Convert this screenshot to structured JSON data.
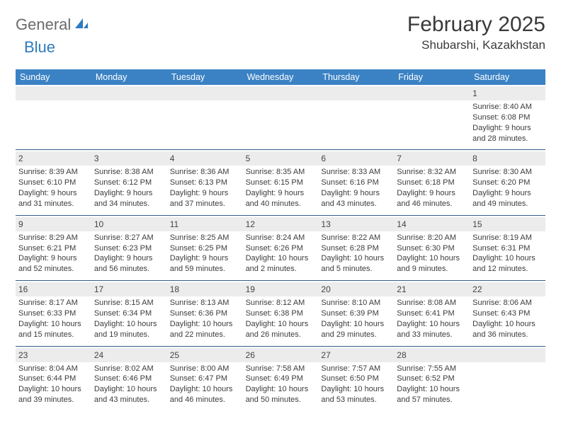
{
  "brand": {
    "part1": "General",
    "part2": "Blue"
  },
  "title": "February 2025",
  "location": "Shubarshi, Kazakhstan",
  "colors": {
    "header_bg": "#3b82c4",
    "header_text": "#ffffff",
    "divider": "#2f5f8a",
    "daynum_bg": "#ececec",
    "body_text": "#3c3c3c",
    "logo_gray": "#6a6a6a",
    "logo_blue": "#2f7bbf"
  },
  "dayNames": [
    "Sunday",
    "Monday",
    "Tuesday",
    "Wednesday",
    "Thursday",
    "Friday",
    "Saturday"
  ],
  "weeks": [
    [
      null,
      null,
      null,
      null,
      null,
      null,
      {
        "n": "1",
        "sr": "Sunrise: 8:40 AM",
        "ss": "Sunset: 6:08 PM",
        "d1": "Daylight: 9 hours",
        "d2": "and 28 minutes."
      }
    ],
    [
      {
        "n": "2",
        "sr": "Sunrise: 8:39 AM",
        "ss": "Sunset: 6:10 PM",
        "d1": "Daylight: 9 hours",
        "d2": "and 31 minutes."
      },
      {
        "n": "3",
        "sr": "Sunrise: 8:38 AM",
        "ss": "Sunset: 6:12 PM",
        "d1": "Daylight: 9 hours",
        "d2": "and 34 minutes."
      },
      {
        "n": "4",
        "sr": "Sunrise: 8:36 AM",
        "ss": "Sunset: 6:13 PM",
        "d1": "Daylight: 9 hours",
        "d2": "and 37 minutes."
      },
      {
        "n": "5",
        "sr": "Sunrise: 8:35 AM",
        "ss": "Sunset: 6:15 PM",
        "d1": "Daylight: 9 hours",
        "d2": "and 40 minutes."
      },
      {
        "n": "6",
        "sr": "Sunrise: 8:33 AM",
        "ss": "Sunset: 6:16 PM",
        "d1": "Daylight: 9 hours",
        "d2": "and 43 minutes."
      },
      {
        "n": "7",
        "sr": "Sunrise: 8:32 AM",
        "ss": "Sunset: 6:18 PM",
        "d1": "Daylight: 9 hours",
        "d2": "and 46 minutes."
      },
      {
        "n": "8",
        "sr": "Sunrise: 8:30 AM",
        "ss": "Sunset: 6:20 PM",
        "d1": "Daylight: 9 hours",
        "d2": "and 49 minutes."
      }
    ],
    [
      {
        "n": "9",
        "sr": "Sunrise: 8:29 AM",
        "ss": "Sunset: 6:21 PM",
        "d1": "Daylight: 9 hours",
        "d2": "and 52 minutes."
      },
      {
        "n": "10",
        "sr": "Sunrise: 8:27 AM",
        "ss": "Sunset: 6:23 PM",
        "d1": "Daylight: 9 hours",
        "d2": "and 56 minutes."
      },
      {
        "n": "11",
        "sr": "Sunrise: 8:25 AM",
        "ss": "Sunset: 6:25 PM",
        "d1": "Daylight: 9 hours",
        "d2": "and 59 minutes."
      },
      {
        "n": "12",
        "sr": "Sunrise: 8:24 AM",
        "ss": "Sunset: 6:26 PM",
        "d1": "Daylight: 10 hours",
        "d2": "and 2 minutes."
      },
      {
        "n": "13",
        "sr": "Sunrise: 8:22 AM",
        "ss": "Sunset: 6:28 PM",
        "d1": "Daylight: 10 hours",
        "d2": "and 5 minutes."
      },
      {
        "n": "14",
        "sr": "Sunrise: 8:20 AM",
        "ss": "Sunset: 6:30 PM",
        "d1": "Daylight: 10 hours",
        "d2": "and 9 minutes."
      },
      {
        "n": "15",
        "sr": "Sunrise: 8:19 AM",
        "ss": "Sunset: 6:31 PM",
        "d1": "Daylight: 10 hours",
        "d2": "and 12 minutes."
      }
    ],
    [
      {
        "n": "16",
        "sr": "Sunrise: 8:17 AM",
        "ss": "Sunset: 6:33 PM",
        "d1": "Daylight: 10 hours",
        "d2": "and 15 minutes."
      },
      {
        "n": "17",
        "sr": "Sunrise: 8:15 AM",
        "ss": "Sunset: 6:34 PM",
        "d1": "Daylight: 10 hours",
        "d2": "and 19 minutes."
      },
      {
        "n": "18",
        "sr": "Sunrise: 8:13 AM",
        "ss": "Sunset: 6:36 PM",
        "d1": "Daylight: 10 hours",
        "d2": "and 22 minutes."
      },
      {
        "n": "19",
        "sr": "Sunrise: 8:12 AM",
        "ss": "Sunset: 6:38 PM",
        "d1": "Daylight: 10 hours",
        "d2": "and 26 minutes."
      },
      {
        "n": "20",
        "sr": "Sunrise: 8:10 AM",
        "ss": "Sunset: 6:39 PM",
        "d1": "Daylight: 10 hours",
        "d2": "and 29 minutes."
      },
      {
        "n": "21",
        "sr": "Sunrise: 8:08 AM",
        "ss": "Sunset: 6:41 PM",
        "d1": "Daylight: 10 hours",
        "d2": "and 33 minutes."
      },
      {
        "n": "22",
        "sr": "Sunrise: 8:06 AM",
        "ss": "Sunset: 6:43 PM",
        "d1": "Daylight: 10 hours",
        "d2": "and 36 minutes."
      }
    ],
    [
      {
        "n": "23",
        "sr": "Sunrise: 8:04 AM",
        "ss": "Sunset: 6:44 PM",
        "d1": "Daylight: 10 hours",
        "d2": "and 39 minutes."
      },
      {
        "n": "24",
        "sr": "Sunrise: 8:02 AM",
        "ss": "Sunset: 6:46 PM",
        "d1": "Daylight: 10 hours",
        "d2": "and 43 minutes."
      },
      {
        "n": "25",
        "sr": "Sunrise: 8:00 AM",
        "ss": "Sunset: 6:47 PM",
        "d1": "Daylight: 10 hours",
        "d2": "and 46 minutes."
      },
      {
        "n": "26",
        "sr": "Sunrise: 7:58 AM",
        "ss": "Sunset: 6:49 PM",
        "d1": "Daylight: 10 hours",
        "d2": "and 50 minutes."
      },
      {
        "n": "27",
        "sr": "Sunrise: 7:57 AM",
        "ss": "Sunset: 6:50 PM",
        "d1": "Daylight: 10 hours",
        "d2": "and 53 minutes."
      },
      {
        "n": "28",
        "sr": "Sunrise: 7:55 AM",
        "ss": "Sunset: 6:52 PM",
        "d1": "Daylight: 10 hours",
        "d2": "and 57 minutes."
      },
      null
    ]
  ]
}
